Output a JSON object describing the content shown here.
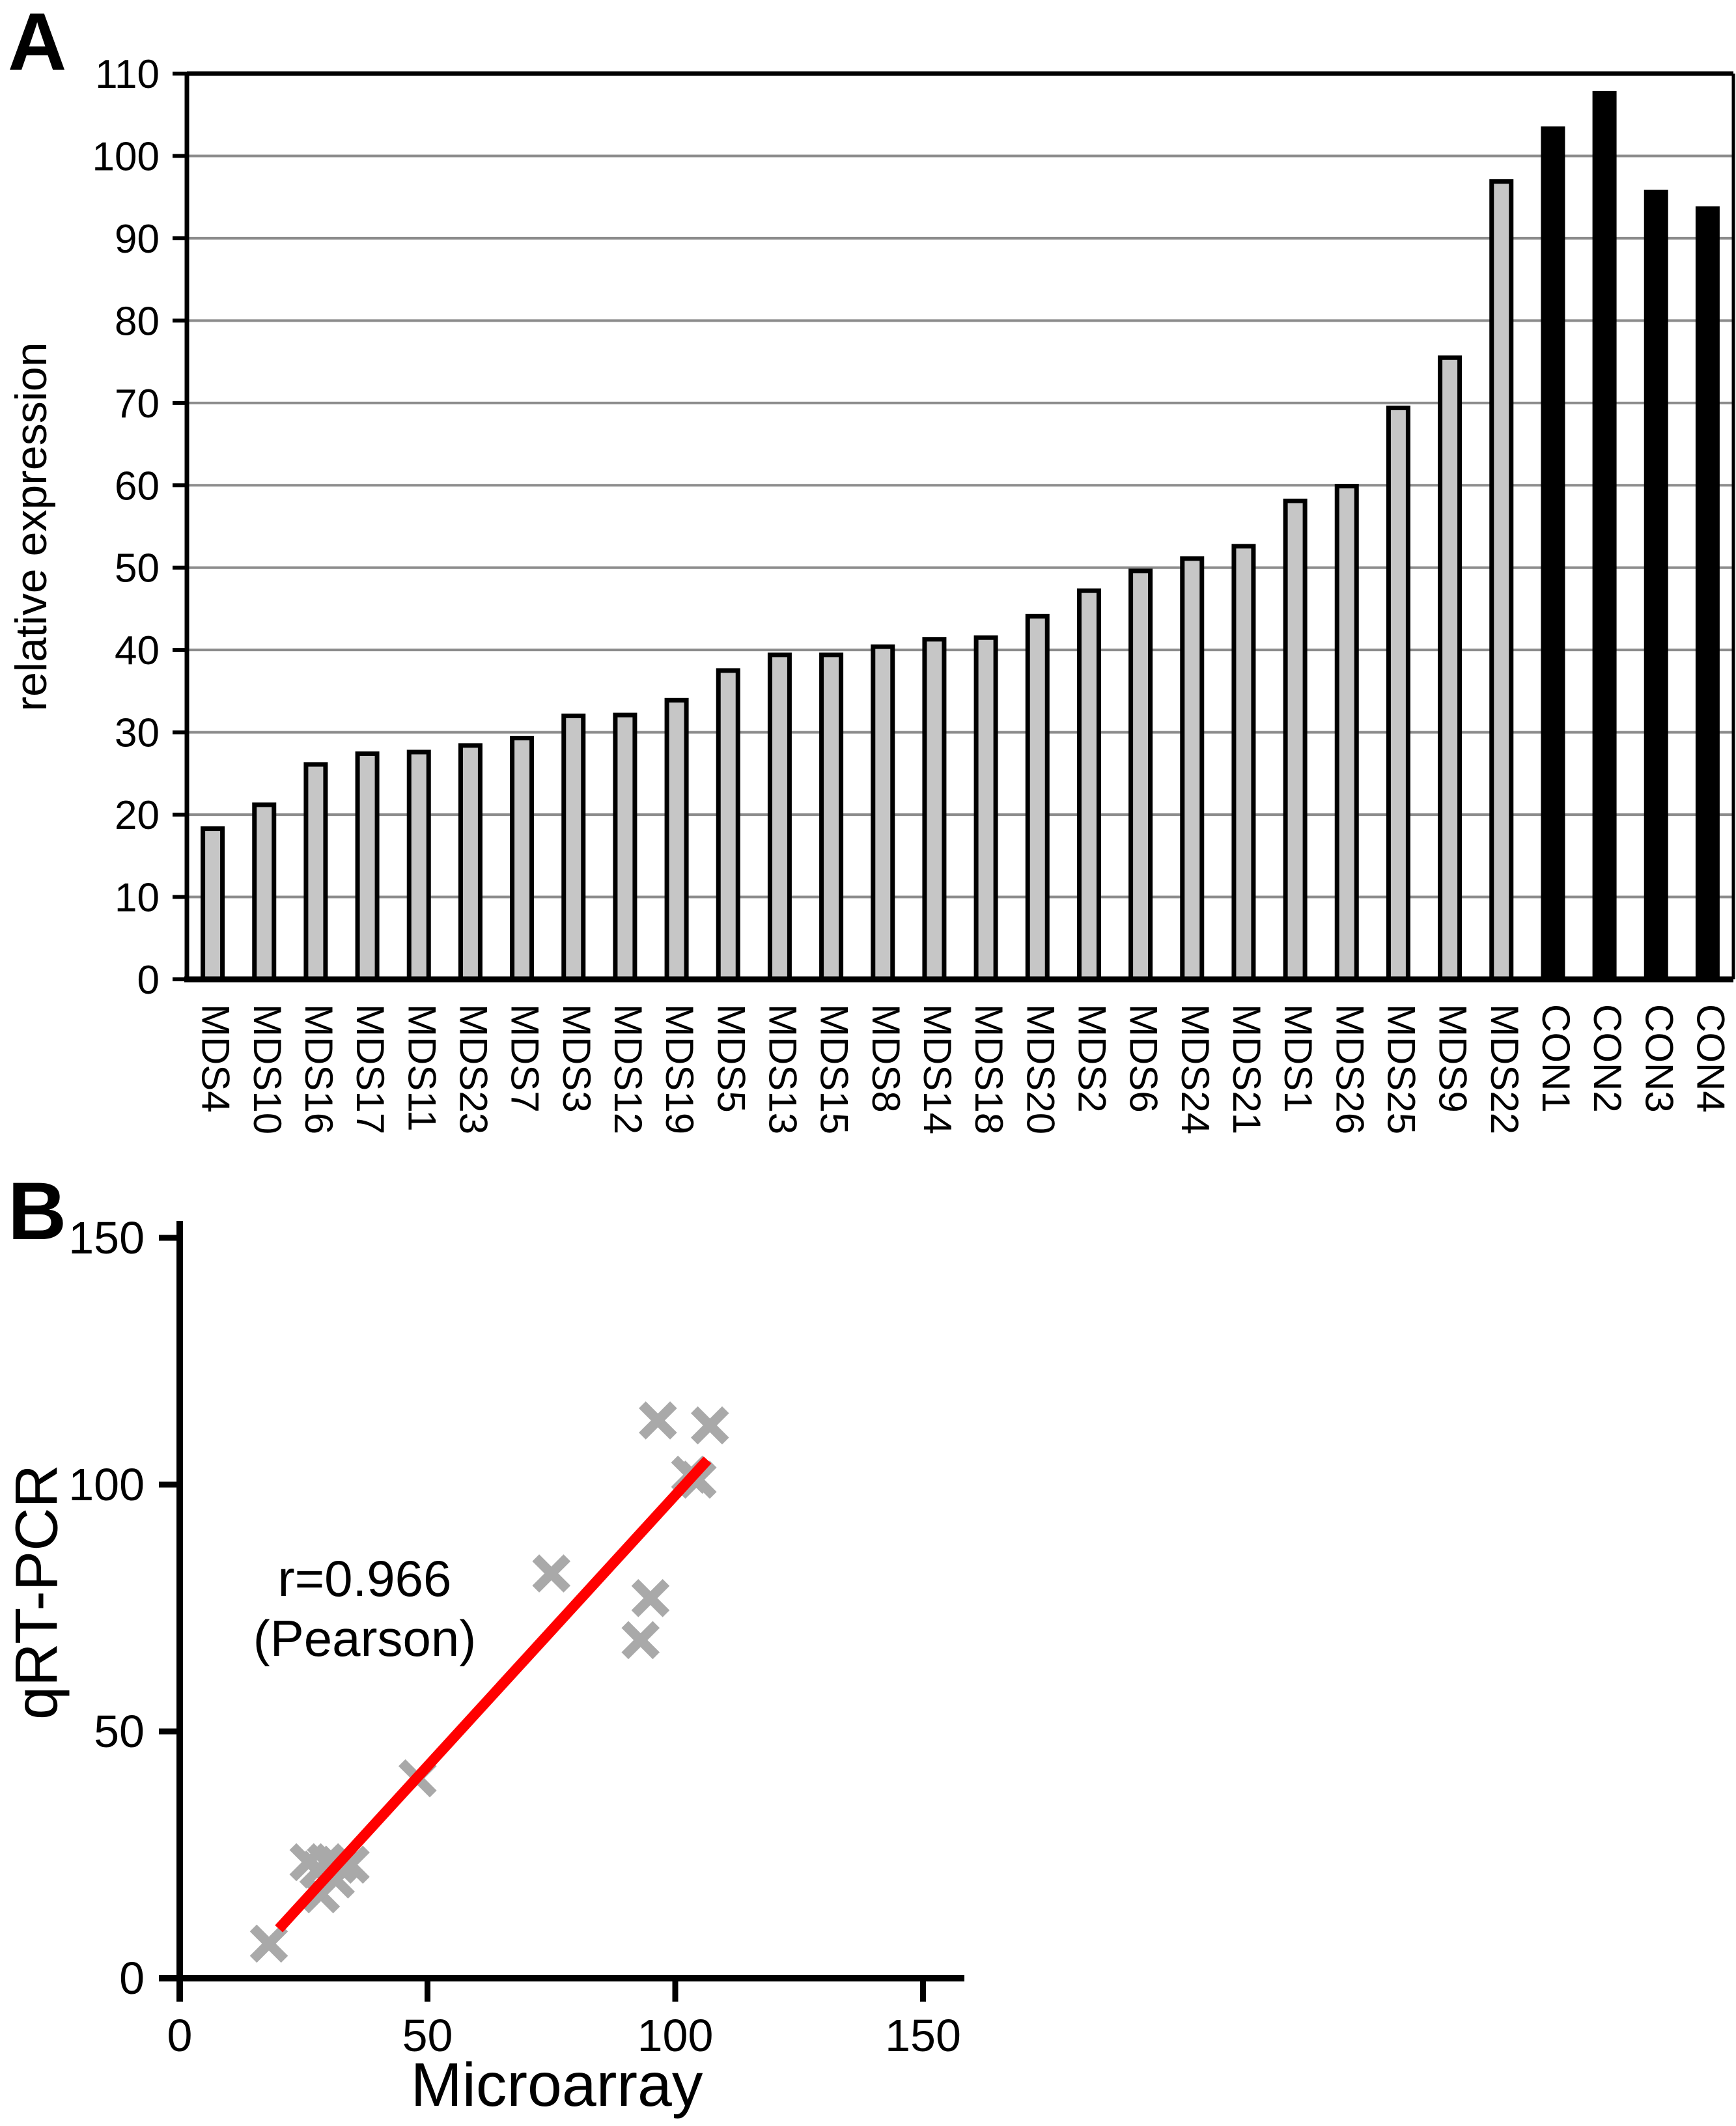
{
  "figure": {
    "panel_a_letter": "A",
    "panel_b_letter": "B"
  },
  "colors": {
    "background": "#ffffff",
    "bar_fill_mds": "#C6C6C6",
    "bar_fill_con": "#000000",
    "bar_border": "#000000",
    "gridline": "#8C8C8C",
    "axis": "#000000",
    "marker_gray": "#A9A9A9",
    "fit_line_red": "#FF0000",
    "text": "#000000"
  },
  "chart_data": [
    {
      "id": "panel-a-bar",
      "type": "bar",
      "title": "",
      "xlabel": "",
      "ylabel": "relative expression",
      "ylim": [
        0,
        110
      ],
      "ytick_step": 10,
      "yticks": [
        0,
        10,
        20,
        30,
        40,
        50,
        60,
        70,
        80,
        90,
        100,
        110
      ],
      "grid": true,
      "legend": "none",
      "categories": [
        "MDS4",
        "MDS10",
        "MDS16",
        "MDS17",
        "MDS11",
        "MDS23",
        "MDS7",
        "MDS3",
        "MDS12",
        "MDS19",
        "MDS5",
        "MDS13",
        "MDS15",
        "MDS8",
        "MDS14",
        "MDS18",
        "MDS20",
        "MDS2",
        "MDS6",
        "MDS24",
        "MDS21",
        "MDS1",
        "MDS26",
        "MDS25",
        "MDS9",
        "MDS22",
        "CON1",
        "CON2",
        "CON3",
        "CON4"
      ],
      "values": [
        18.3,
        21.2,
        26.1,
        27.4,
        27.6,
        28.4,
        29.3,
        32.0,
        32.1,
        33.9,
        37.5,
        39.4,
        39.4,
        40.4,
        41.3,
        41.5,
        44.1,
        47.2,
        49.6,
        51.1,
        52.6,
        58.1,
        59.9,
        69.4,
        75.5,
        96.9,
        103.3,
        107.6,
        95.6,
        93.6
      ],
      "groups": [
        "MDS",
        "MDS",
        "MDS",
        "MDS",
        "MDS",
        "MDS",
        "MDS",
        "MDS",
        "MDS",
        "MDS",
        "MDS",
        "MDS",
        "MDS",
        "MDS",
        "MDS",
        "MDS",
        "MDS",
        "MDS",
        "MDS",
        "MDS",
        "MDS",
        "MDS",
        "MDS",
        "MDS",
        "MDS",
        "MDS",
        "CON",
        "CON",
        "CON",
        "CON"
      ]
    },
    {
      "id": "panel-b-scatter",
      "type": "scatter",
      "title": "",
      "xlabel": "Microarray",
      "ylabel": "qRT-PCR",
      "xlim": [
        0,
        150
      ],
      "ylim": [
        0,
        150
      ],
      "xticks": [
        0,
        50,
        100,
        150
      ],
      "yticks": [
        0,
        50,
        100,
        150
      ],
      "grid": false,
      "legend": "none",
      "marker": "x-cross",
      "points": [
        [
          18,
          7
        ],
        [
          26,
          23.5
        ],
        [
          28,
          22
        ],
        [
          29.5,
          23.5
        ],
        [
          32,
          23
        ],
        [
          34.5,
          23
        ],
        [
          28.5,
          17
        ],
        [
          31.5,
          20
        ],
        [
          48,
          40.5
        ],
        [
          75,
          82
        ],
        [
          93,
          68.5
        ],
        [
          95,
          77
        ],
        [
          96.5,
          113
        ],
        [
          103,
          102
        ],
        [
          104.5,
          101
        ],
        [
          107,
          112
        ]
      ],
      "fit_line": {
        "x1": 20,
        "y1": 10,
        "x2": 106.5,
        "y2": 105
      },
      "annotation": {
        "line1": "r=0.966",
        "line2": "(Pearson)"
      }
    }
  ]
}
